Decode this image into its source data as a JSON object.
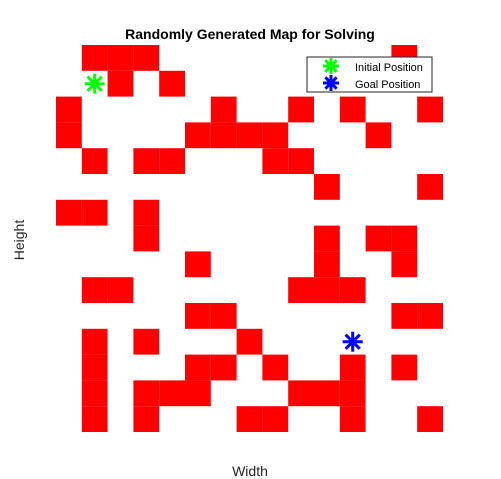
{
  "chart_data": {
    "type": "heatmap",
    "title": "Randomly Generated Map for Solving",
    "xlabel": "Width",
    "ylabel": "Height",
    "grid_cols": 15,
    "grid_rows": 16,
    "cell_colors": {
      "obstacle": "#ff0000",
      "free": "#ffffff"
    },
    "obstacles": [
      [
        2,
        1
      ],
      [
        3,
        1
      ],
      [
        4,
        1
      ],
      [
        14,
        1
      ],
      [
        3,
        2
      ],
      [
        5,
        2
      ],
      [
        1,
        3
      ],
      [
        7,
        3
      ],
      [
        10,
        3
      ],
      [
        12,
        3
      ],
      [
        15,
        3
      ],
      [
        1,
        4
      ],
      [
        6,
        4
      ],
      [
        7,
        4
      ],
      [
        8,
        4
      ],
      [
        9,
        4
      ],
      [
        13,
        4
      ],
      [
        2,
        5
      ],
      [
        4,
        5
      ],
      [
        5,
        5
      ],
      [
        9,
        5
      ],
      [
        10,
        5
      ],
      [
        11,
        6
      ],
      [
        15,
        6
      ],
      [
        1,
        7
      ],
      [
        2,
        7
      ],
      [
        4,
        7
      ],
      [
        4,
        8
      ],
      [
        11,
        8
      ],
      [
        13,
        8
      ],
      [
        14,
        8
      ],
      [
        6,
        9
      ],
      [
        11,
        9
      ],
      [
        14,
        9
      ],
      [
        2,
        10
      ],
      [
        3,
        10
      ],
      [
        10,
        10
      ],
      [
        11,
        10
      ],
      [
        12,
        10
      ],
      [
        6,
        11
      ],
      [
        7,
        11
      ],
      [
        14,
        11
      ],
      [
        15,
        11
      ],
      [
        2,
        12
      ],
      [
        4,
        12
      ],
      [
        8,
        12
      ],
      [
        2,
        13
      ],
      [
        6,
        13
      ],
      [
        7,
        13
      ],
      [
        9,
        13
      ],
      [
        12,
        13
      ],
      [
        14,
        13
      ],
      [
        2,
        14
      ],
      [
        4,
        14
      ],
      [
        5,
        14
      ],
      [
        6,
        14
      ],
      [
        10,
        14
      ],
      [
        11,
        14
      ],
      [
        12,
        14
      ],
      [
        2,
        15
      ],
      [
        4,
        15
      ],
      [
        8,
        15
      ],
      [
        9,
        15
      ],
      [
        12,
        15
      ],
      [
        15,
        15
      ]
    ],
    "markers": [
      {
        "name": "Initial Position",
        "col": 2,
        "row": 2,
        "color": "#00ff00",
        "symbol": "*"
      },
      {
        "name": "Goal Position",
        "col": 12,
        "row": 12,
        "color": "#0000ff",
        "symbol": "*"
      }
    ],
    "legend": {
      "placement": "top-right",
      "entries": [
        "Initial Position",
        "Goal Position"
      ]
    },
    "grid": false
  }
}
